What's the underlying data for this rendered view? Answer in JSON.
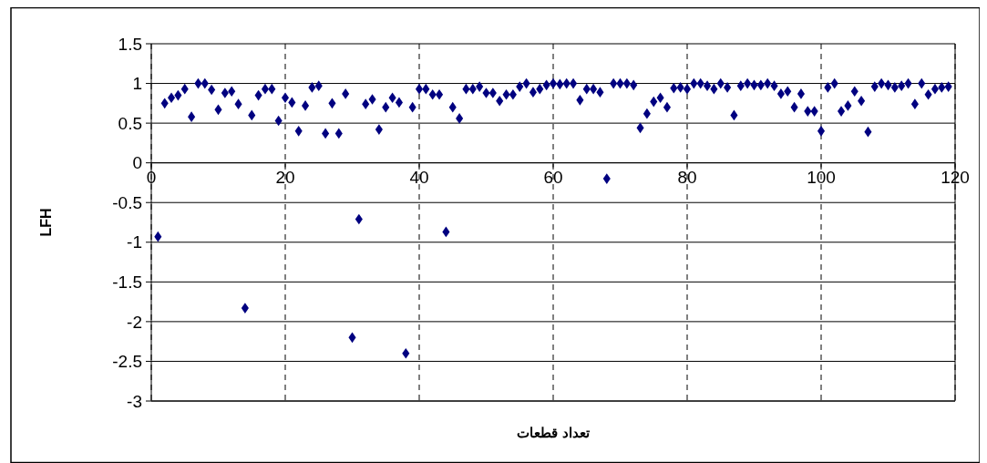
{
  "chart_data": {
    "type": "scatter",
    "xlabel": "تعداد قطعات",
    "ylabel": "LFH",
    "marker": "diamond",
    "grid": true,
    "xlim": [
      0,
      120
    ],
    "xticks": [
      0,
      20,
      40,
      60,
      80,
      100,
      120
    ],
    "ylim": [
      -3,
      1.5
    ],
    "yticks": [
      -3,
      -2.5,
      -2,
      -1.5,
      -1,
      -0.5,
      0,
      0.5,
      1,
      1.5
    ],
    "series": [
      {
        "color": "#000080",
        "x": [
          1,
          2,
          3,
          4,
          5,
          6,
          7,
          8,
          9,
          10,
          11,
          12,
          13,
          14,
          15,
          16,
          17,
          18,
          19,
          20,
          21,
          22,
          23,
          24,
          25,
          26,
          27,
          28,
          29,
          30,
          31,
          32,
          33,
          34,
          35,
          36,
          37,
          38,
          39,
          40,
          41,
          42,
          43,
          44,
          45,
          46,
          47,
          48,
          49,
          50,
          51,
          52,
          53,
          54,
          55,
          56,
          57,
          58,
          59,
          60,
          61,
          62,
          63,
          64,
          65,
          66,
          67,
          68,
          69,
          70,
          71,
          72,
          73,
          74,
          75,
          76,
          77,
          78,
          79,
          80,
          81,
          82,
          83,
          84,
          85,
          86,
          87,
          88,
          89,
          90,
          91,
          92,
          93,
          94,
          95,
          96,
          97,
          98,
          99,
          100,
          101,
          102,
          103,
          104,
          105,
          106,
          107,
          108,
          109,
          110,
          111,
          112,
          113,
          114,
          115,
          116,
          117,
          118,
          119
        ],
        "values": [
          -0.93,
          0.75,
          0.82,
          0.85,
          0.93,
          0.58,
          1.0,
          1.0,
          0.92,
          0.67,
          0.88,
          0.9,
          0.74,
          -1.83,
          0.6,
          0.85,
          0.93,
          0.93,
          0.53,
          0.82,
          0.76,
          0.4,
          0.72,
          0.95,
          0.97,
          0.37,
          0.75,
          0.37,
          0.87,
          -2.2,
          -0.71,
          0.74,
          0.8,
          0.42,
          0.7,
          0.82,
          0.76,
          -2.4,
          0.7,
          0.93,
          0.93,
          0.86,
          0.86,
          -0.87,
          0.7,
          0.56,
          0.93,
          0.93,
          0.96,
          0.88,
          0.88,
          0.78,
          0.86,
          0.86,
          0.96,
          1.0,
          0.89,
          0.93,
          0.98,
          1.0,
          0.99,
          1.0,
          1.0,
          0.79,
          0.93,
          0.93,
          0.89,
          -0.2,
          1.0,
          1.0,
          1.0,
          0.98,
          0.44,
          0.62,
          0.77,
          0.82,
          0.7,
          0.94,
          0.95,
          0.93,
          1.0,
          1.0,
          0.97,
          0.93,
          1.0,
          0.95,
          0.6,
          0.97,
          1.0,
          0.98,
          0.98,
          1.0,
          0.97,
          0.87,
          0.9,
          0.7,
          0.87,
          0.65,
          0.65,
          0.4,
          0.95,
          1.0,
          0.65,
          0.72,
          0.9,
          0.78,
          0.39,
          0.96,
          1.0,
          0.98,
          0.95,
          0.97,
          1.0,
          0.74,
          1.0,
          0.86,
          0.93,
          0.95,
          0.96
        ]
      }
    ]
  }
}
